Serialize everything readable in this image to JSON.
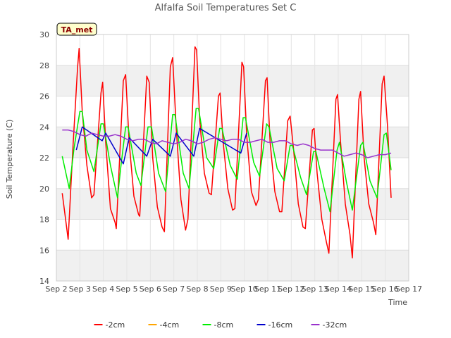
{
  "chart_data": {
    "type": "line",
    "title": "Alfalfa Soil Temperatures Set C",
    "xlabel": "Time",
    "ylabel": "Soil Temperature (C)",
    "annotation": "TA_met",
    "xlim": [
      2,
      17
    ],
    "ylim": [
      14,
      30
    ],
    "x_ticks": [
      2,
      3,
      4,
      5,
      6,
      7,
      8,
      9,
      10,
      11,
      12,
      13,
      14,
      15,
      16,
      17
    ],
    "x_tick_labels": [
      "Sep 2",
      "Sep 3",
      "Sep 4",
      "Sep 5",
      "Sep 6",
      "Sep 7",
      "Sep 8",
      "Sep 9",
      "Sep 10",
      "Sep 11",
      "Sep 12",
      "Sep 13",
      "Sep 14",
      "Sep 15",
      "Sep 16",
      "Sep 17"
    ],
    "y_ticks": [
      14,
      16,
      18,
      20,
      22,
      24,
      26,
      28,
      30
    ],
    "y_tick_labels": [
      "14",
      "16",
      "18",
      "20",
      "22",
      "24",
      "26",
      "28",
      "30"
    ],
    "grid": true,
    "legend_position": "bottom",
    "series": [
      {
        "name": "-2cm",
        "color": "#ff0000",
        "x": [
          2.25,
          2.35,
          2.5,
          2.7,
          2.9,
          2.97,
          3.1,
          3.3,
          3.5,
          3.6,
          3.9,
          3.97,
          4.1,
          4.3,
          4.5,
          4.55,
          4.85,
          4.95,
          5.1,
          5.3,
          5.5,
          5.55,
          5.85,
          5.95,
          6.1,
          6.3,
          6.5,
          6.6,
          6.85,
          6.95,
          7.1,
          7.3,
          7.5,
          7.6,
          7.9,
          7.97,
          8.1,
          8.3,
          8.5,
          8.6,
          8.9,
          8.97,
          9.1,
          9.3,
          9.5,
          9.6,
          9.9,
          9.97,
          10.1,
          10.3,
          10.5,
          10.6,
          10.9,
          10.97,
          11.1,
          11.3,
          11.5,
          11.6,
          11.85,
          11.95,
          12.1,
          12.3,
          12.5,
          12.6,
          12.9,
          12.97,
          13.1,
          13.3,
          13.5,
          13.6,
          13.9,
          13.97,
          14.1,
          14.3,
          14.5,
          14.6,
          14.88,
          14.95,
          15.1,
          15.3,
          15.5,
          15.6,
          15.87,
          15.95,
          16.1,
          16.25
        ],
        "y": [
          19.7,
          18.5,
          16.7,
          22.5,
          27.8,
          29.1,
          25.0,
          21.5,
          19.4,
          19.6,
          26.2,
          26.9,
          23.0,
          18.7,
          17.8,
          17.4,
          27.0,
          27.4,
          23.0,
          19.5,
          18.3,
          18.2,
          27.3,
          26.9,
          22.0,
          18.8,
          17.5,
          17.2,
          27.9,
          28.5,
          24.0,
          19.3,
          17.3,
          18.0,
          29.2,
          29.0,
          24.5,
          21.0,
          19.7,
          19.6,
          26.0,
          26.2,
          23.0,
          20.0,
          18.6,
          18.7,
          28.2,
          27.9,
          23.5,
          19.8,
          18.9,
          19.3,
          27.0,
          27.2,
          23.0,
          19.8,
          18.5,
          18.5,
          24.4,
          24.7,
          22.5,
          19.0,
          17.5,
          17.4,
          23.8,
          23.9,
          21.0,
          18.0,
          16.5,
          15.8,
          25.8,
          26.1,
          23.0,
          19.0,
          17.0,
          15.5,
          25.8,
          26.3,
          22.0,
          19.0,
          17.8,
          17.0,
          26.8,
          27.3,
          24.0,
          19.4
        ]
      },
      {
        "name": "-4cm",
        "color": "#ffa500",
        "x": [],
        "y": []
      },
      {
        "name": "-8cm",
        "color": "#00ee00",
        "x": [
          2.25,
          2.55,
          2.75,
          3.0,
          3.1,
          3.3,
          3.6,
          3.9,
          4.0,
          4.3,
          4.6,
          4.75,
          4.95,
          5.05,
          5.4,
          5.6,
          5.9,
          6.05,
          6.35,
          6.65,
          6.95,
          7.05,
          7.4,
          7.65,
          7.95,
          8.05,
          8.4,
          8.7,
          8.95,
          9.05,
          9.4,
          9.7,
          9.95,
          10.05,
          10.4,
          10.65,
          10.95,
          11.05,
          11.4,
          11.7,
          11.95,
          12.05,
          12.4,
          12.65,
          12.95,
          13.05,
          13.4,
          13.65,
          13.95,
          14.05,
          14.35,
          14.6,
          14.95,
          15.05,
          15.35,
          15.65,
          15.95,
          16.05,
          16.25
        ],
        "y": [
          22.1,
          20.0,
          22.6,
          25.0,
          25.0,
          22.5,
          21.1,
          24.2,
          24.2,
          21.5,
          19.4,
          21.5,
          24.0,
          24.0,
          21.0,
          20.2,
          24.0,
          24.0,
          21.0,
          19.8,
          24.8,
          24.8,
          21.0,
          20.0,
          25.2,
          25.2,
          22.0,
          21.3,
          23.9,
          23.9,
          21.5,
          20.6,
          24.6,
          24.6,
          21.7,
          20.8,
          24.2,
          24.0,
          21.3,
          20.5,
          22.8,
          22.8,
          20.7,
          19.6,
          22.4,
          22.4,
          20.0,
          18.5,
          22.5,
          23.0,
          20.4,
          18.6,
          22.8,
          23.0,
          20.5,
          19.4,
          23.5,
          23.6,
          21.2
        ]
      },
      {
        "name": "-16cm",
        "color": "#0000cc",
        "x": [
          2.85,
          3.1,
          3.95,
          4.1,
          4.85,
          5.1,
          5.85,
          6.1,
          6.85,
          7.1,
          7.85,
          8.1,
          9.85,
          10.1
        ],
        "y": [
          22.5,
          24.0,
          23.1,
          23.6,
          21.6,
          23.3,
          22.1,
          23.2,
          22.1,
          23.6,
          22.1,
          23.9,
          22.3,
          23.6
        ]
      },
      {
        "name": "-32cm",
        "color": "#9932cc",
        "x": [
          2.25,
          2.5,
          2.75,
          3.0,
          3.25,
          3.5,
          3.75,
          4.0,
          4.25,
          4.5,
          4.75,
          5.0,
          5.25,
          5.5,
          5.75,
          6.0,
          6.25,
          6.5,
          6.75,
          7.0,
          7.25,
          7.5,
          7.75,
          8.0,
          8.25,
          8.5,
          8.75,
          9.0,
          9.25,
          9.5,
          9.75,
          10.0,
          10.25,
          10.5,
          10.75,
          11.0,
          11.25,
          11.5,
          11.75,
          12.0,
          12.25,
          12.5,
          12.75,
          13.0,
          13.25,
          13.5,
          13.75,
          14.0,
          14.25,
          14.5,
          14.75,
          15.0,
          15.25,
          15.5,
          15.75,
          16.0,
          16.25
        ],
        "y": [
          23.8,
          23.8,
          23.7,
          23.5,
          23.4,
          23.6,
          23.5,
          23.4,
          23.4,
          23.5,
          23.4,
          23.2,
          23.1,
          23.2,
          23.2,
          23.0,
          22.9,
          23.1,
          23.0,
          22.9,
          23.0,
          23.2,
          23.1,
          22.9,
          23.0,
          23.2,
          23.3,
          23.2,
          23.1,
          23.2,
          23.2,
          23.0,
          23.0,
          23.1,
          23.2,
          23.0,
          23.0,
          23.1,
          23.1,
          22.9,
          22.8,
          22.9,
          22.8,
          22.6,
          22.5,
          22.5,
          22.5,
          22.3,
          22.1,
          22.2,
          22.3,
          22.2,
          22.0,
          22.1,
          22.2,
          22.2,
          22.3
        ]
      }
    ]
  }
}
